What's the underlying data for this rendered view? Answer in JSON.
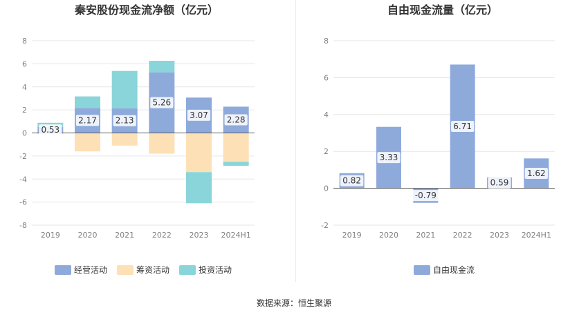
{
  "footer": {
    "source": "数据来源：恒生聚源"
  },
  "colors": {
    "operating": "#8eaadb",
    "financing": "#fde0b5",
    "investing": "#8ad5d9",
    "free_cash_flow": "#8eaadb",
    "grid": "#e6e6e6",
    "axis": "#555555",
    "text": "#333333",
    "tick": "#808080"
  },
  "chart_data": [
    {
      "type": "bar",
      "stacked": true,
      "title": "秦安股份现金流净额（亿元）",
      "xlabel": "",
      "ylabel": "",
      "categories": [
        "2019",
        "2020",
        "2021",
        "2022",
        "2023",
        "2024H1"
      ],
      "ylim": [
        -8,
        8
      ],
      "yticks": [
        -8,
        -6,
        -4,
        -2,
        0,
        2,
        4,
        6,
        8
      ],
      "grid": true,
      "legend_position": "bottom",
      "series": [
        {
          "name": "经营活动",
          "color": "#8eaadb",
          "values": [
            0.53,
            2.17,
            2.13,
            5.26,
            3.07,
            2.28
          ],
          "labeled": true
        },
        {
          "name": "筹资活动",
          "color": "#fde0b5",
          "values": [
            -0.1,
            -1.6,
            -1.1,
            -1.8,
            -3.4,
            -2.5
          ],
          "labeled": false
        },
        {
          "name": "投资活动",
          "color": "#8ad5d9",
          "values": [
            0.35,
            1.0,
            3.25,
            1.0,
            -2.7,
            -0.35
          ],
          "labeled": false
        }
      ]
    },
    {
      "type": "bar",
      "stacked": false,
      "title": "自由现金流量（亿元）",
      "xlabel": "",
      "ylabel": "",
      "categories": [
        "2019",
        "2020",
        "2021",
        "2022",
        "2023",
        "2024H1"
      ],
      "ylim": [
        -2,
        8
      ],
      "yticks": [
        -2,
        0,
        2,
        4,
        6,
        8
      ],
      "grid": true,
      "legend_position": "bottom",
      "series": [
        {
          "name": "自由现金流",
          "color": "#8eaadb",
          "values": [
            0.82,
            3.33,
            -0.79,
            6.71,
            0.59,
            1.62
          ],
          "labeled": true
        }
      ]
    }
  ]
}
